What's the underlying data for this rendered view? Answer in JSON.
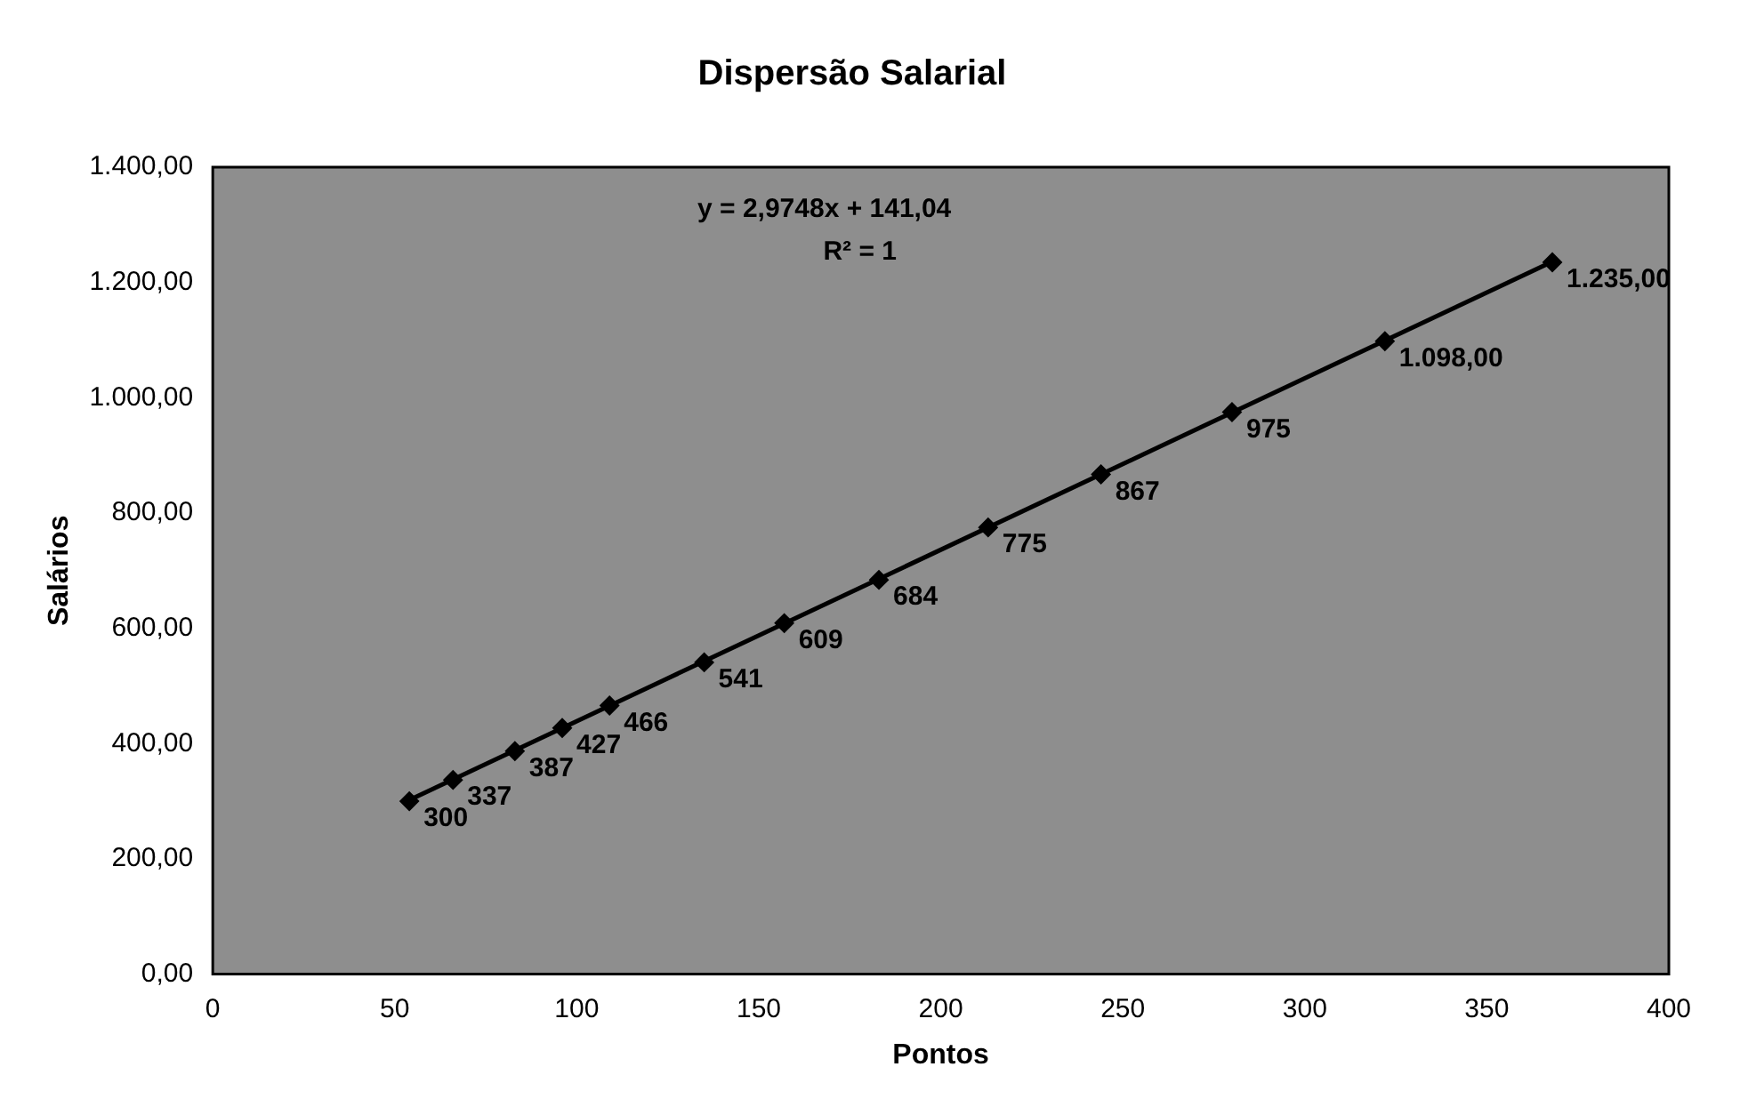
{
  "chart_data": {
    "type": "scatter",
    "title": "Dispersão Salarial",
    "xlabel": "Pontos",
    "ylabel": "Salários",
    "xlim": [
      0,
      400
    ],
    "xticks": [
      0,
      50,
      100,
      150,
      200,
      250,
      300,
      350,
      400
    ],
    "ylim": [
      0,
      1400
    ],
    "yticks": [
      {
        "value": 0,
        "label": "0,00"
      },
      {
        "value": 200,
        "label": "200,00"
      },
      {
        "value": 400,
        "label": "400,00"
      },
      {
        "value": 600,
        "label": "600,00"
      },
      {
        "value": 800,
        "label": "800,00"
      },
      {
        "value": 1000,
        "label": "1.000,00"
      },
      {
        "value": 1200,
        "label": "1.200,00"
      },
      {
        "value": 1400,
        "label": "1.400,00"
      }
    ],
    "grid": false,
    "legend": false,
    "series": [
      {
        "marker": "diamond",
        "color": "#000000",
        "x": [
          54,
          66,
          83,
          96,
          109,
          135,
          157,
          183,
          213,
          244,
          280,
          322,
          368
        ],
        "values": [
          300,
          337,
          387,
          427,
          466,
          541,
          609,
          684,
          775,
          867,
          975,
          1098,
          1235
        ],
        "value_labels": [
          "300",
          "337",
          "387",
          "427",
          "466",
          "541",
          "609",
          "684",
          "775",
          "867",
          "975",
          "1.098,00",
          "1.235,00"
        ]
      },
      {
        "type": "line",
        "color": "#000000",
        "x": [
          54,
          368
        ],
        "values": [
          302,
          1236
        ]
      }
    ],
    "annotations": [
      "y = 2,9748x + 141,04",
      "R² = 1"
    ]
  }
}
